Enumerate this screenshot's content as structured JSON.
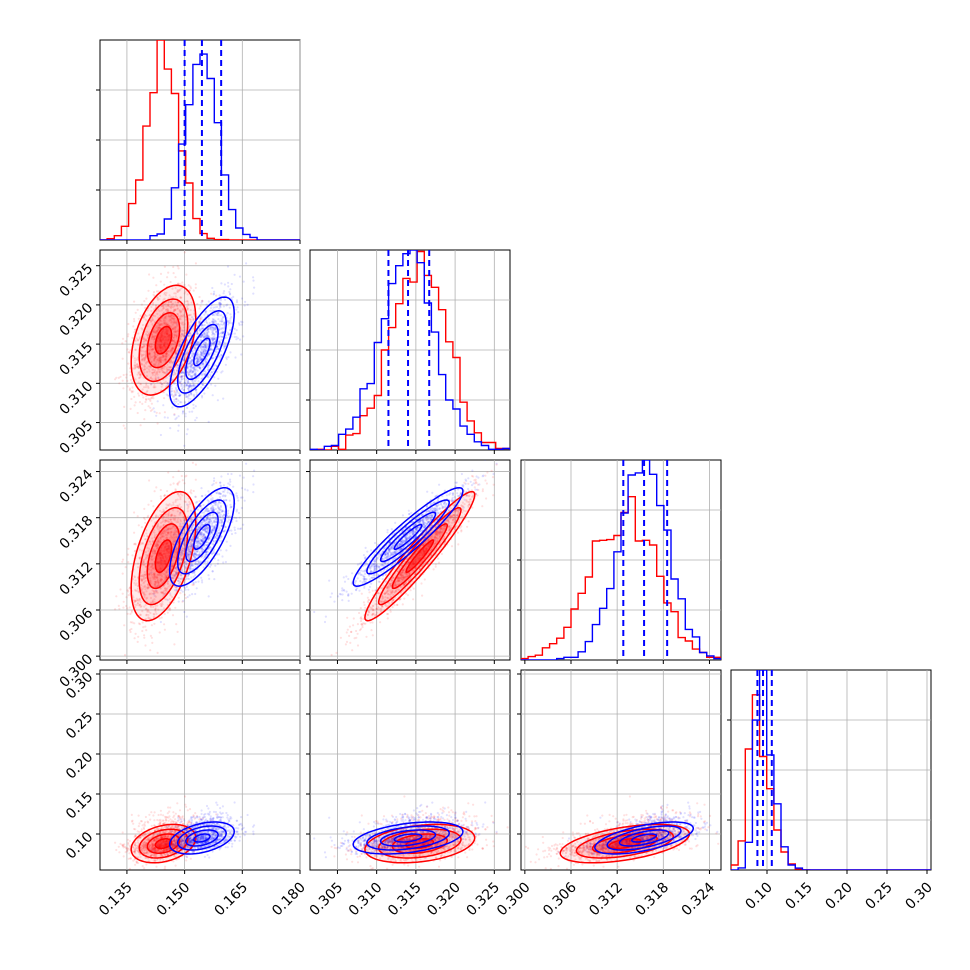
{
  "chart_data": {
    "type": "corner",
    "title": "",
    "colors": {
      "red_run": "#ff0000",
      "blue_run": "#0000ff",
      "grid": "#b0b0b0"
    },
    "grid": true,
    "parameters": [
      {
        "id": "p1",
        "range": [
          0.128,
          0.18
        ],
        "ticks": [
          0.135,
          0.15,
          0.165,
          0.18
        ],
        "tick_labels": [
          "0.135",
          "0.150",
          "0.165",
          "0.180"
        ]
      },
      {
        "id": "p2",
        "range": [
          0.3015,
          0.327
        ],
        "ticks": [
          0.305,
          0.31,
          0.315,
          0.32,
          0.325
        ],
        "tick_labels": [
          "0.305",
          "0.310",
          "0.315",
          "0.320",
          "0.325"
        ]
      },
      {
        "id": "p3",
        "range": [
          0.2995,
          0.3255
        ],
        "ticks": [
          0.3,
          0.306,
          0.312,
          0.318,
          0.324
        ],
        "tick_labels": [
          "0.300",
          "0.306",
          "0.312",
          "0.318",
          "0.324"
        ]
      },
      {
        "id": "p4",
        "range": [
          0.055,
          0.305
        ],
        "ticks": [
          0.1,
          0.15,
          0.2,
          0.25,
          0.3
        ],
        "tick_labels": [
          "0.10",
          "0.15",
          "0.20",
          "0.25",
          "0.30"
        ]
      }
    ],
    "series": [
      {
        "color": "#ff0000",
        "mean": [
          0.1445,
          0.3155,
          0.313,
          0.088
        ],
        "sigma": [
          0.0042,
          0.0035,
          0.0042,
          0.012
        ],
        "corr": [
          [
            1.0,
            0.4,
            0.5,
            0.3
          ],
          [
            0.4,
            1.0,
            0.95,
            0.3
          ],
          [
            0.5,
            0.95,
            1.0,
            0.5
          ],
          [
            0.3,
            0.3,
            0.5,
            1.0
          ]
        ]
      },
      {
        "color": "#0000ff",
        "mean": [
          0.1545,
          0.314,
          0.3155,
          0.095
        ],
        "sigma": [
          0.0042,
          0.0035,
          0.0032,
          0.01
        ],
        "corr": [
          [
            1.0,
            0.7,
            0.7,
            0.4
          ],
          [
            0.7,
            1.0,
            0.93,
            0.4
          ],
          [
            0.7,
            0.93,
            1.0,
            0.6
          ],
          [
            0.4,
            0.4,
            0.6,
            1.0
          ]
        ],
        "quantiles": [
          [
            0.15,
            0.1545,
            0.1595
          ],
          [
            0.3115,
            0.314,
            0.3167
          ],
          [
            0.3128,
            0.3155,
            0.3185
          ],
          [
            0.088,
            0.095,
            0.106
          ]
        ]
      }
    ]
  }
}
